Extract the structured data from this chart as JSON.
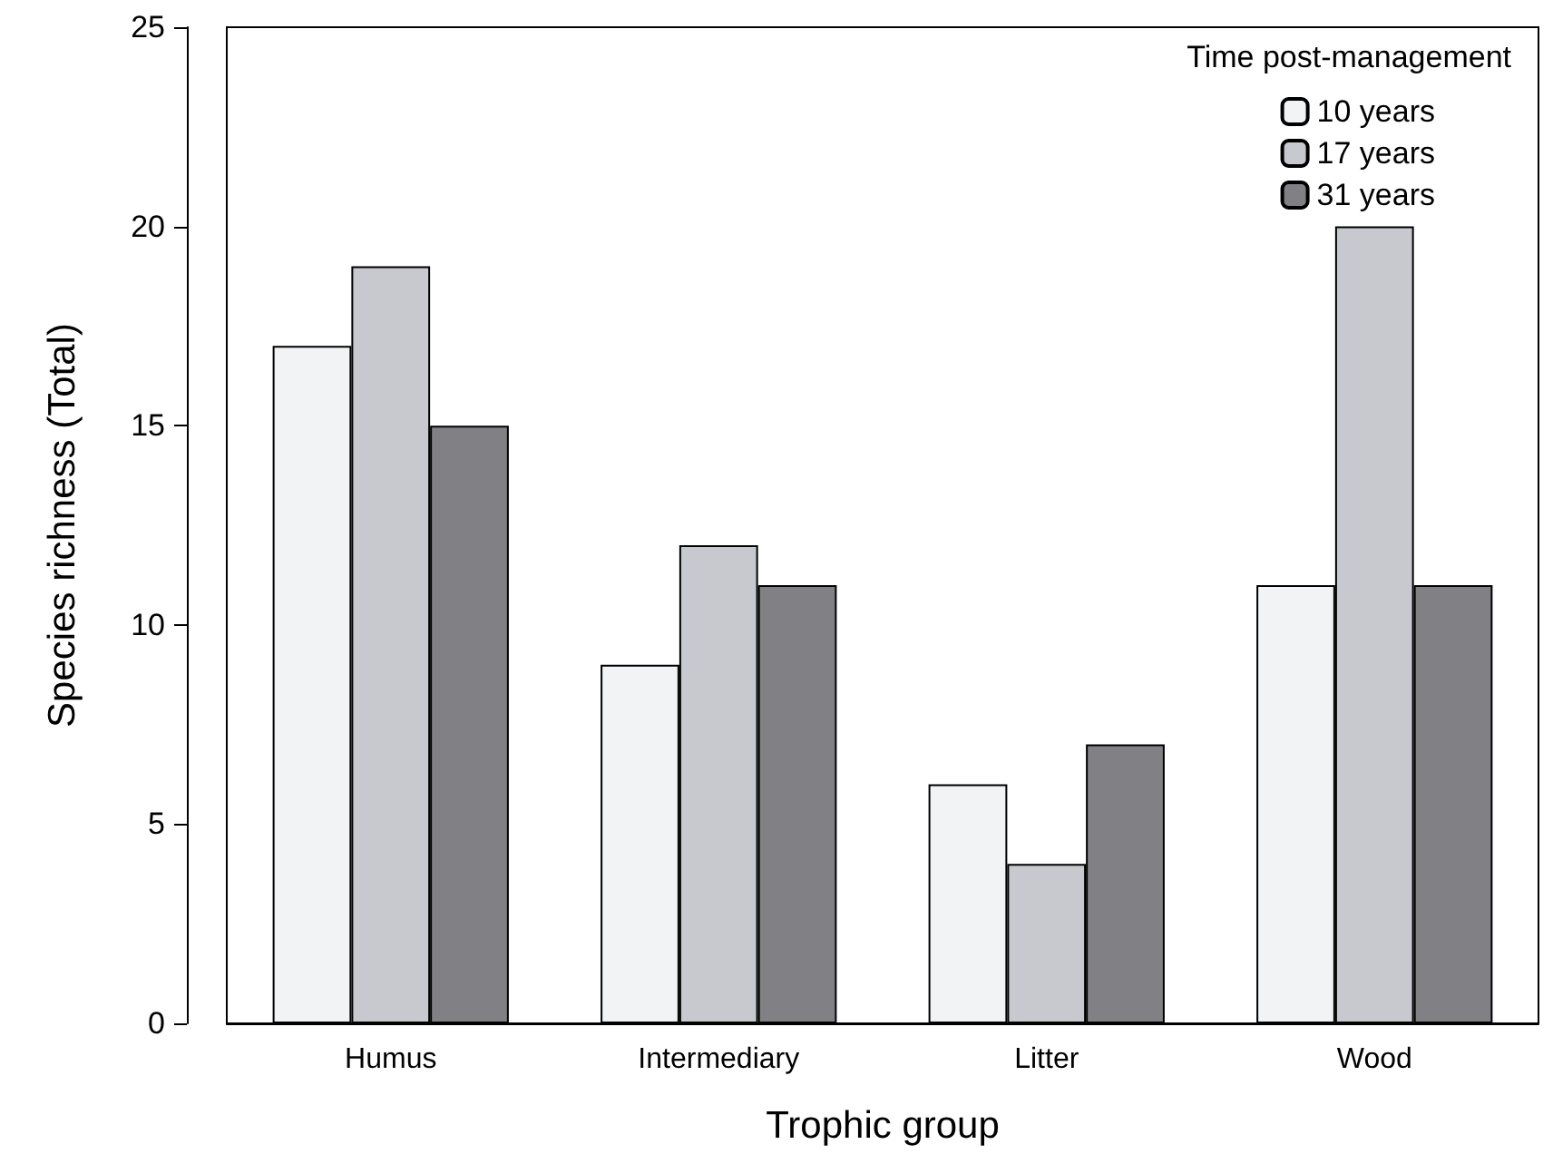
{
  "chart_data": {
    "type": "bar",
    "xlabel": "Trophic group",
    "ylabel": "Species richness (Total)",
    "legend_title": "Time post-management",
    "categories": [
      "Humus",
      "Intermediary",
      "Litter",
      "Wood"
    ],
    "series": [
      {
        "name": "10 years",
        "color": "#f2f3f5",
        "values": [
          17,
          9,
          6,
          11
        ]
      },
      {
        "name": "17 years",
        "color": "#c8c9ce",
        "values": [
          19,
          12,
          4,
          20
        ]
      },
      {
        "name": "31 years",
        "color": "#818085",
        "values": [
          15,
          11,
          7,
          11
        ]
      }
    ],
    "ylim": [
      0,
      25
    ],
    "yticks": [
      0,
      5,
      10,
      15,
      20,
      25
    ],
    "grid": false,
    "legend": "top right"
  }
}
